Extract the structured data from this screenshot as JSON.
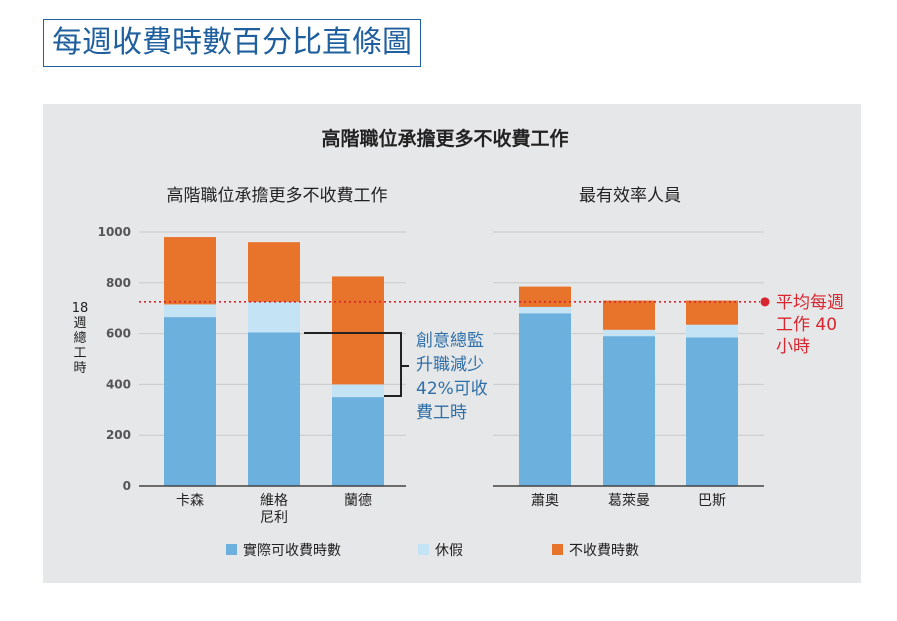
{
  "page": {
    "title": "每週收費時數百分比直條圖"
  },
  "colors": {
    "actual": "#6cb0dd",
    "vacation": "#c4e3f5",
    "unbilled": "#e8732b",
    "panel_bg": "#e6e7e8",
    "title_blue": "#1f5f9e",
    "avg_line": "#d7262f",
    "annotation_blue": "#2f6fa8"
  },
  "chart_data": {
    "type": "bar",
    "stacked": true,
    "title": "高階職位承擔更多不收費工作",
    "ylabel": "18\n週\n總\n工\n時",
    "ylim": [
      0,
      1000
    ],
    "yticks": [
      0,
      200,
      400,
      600,
      800,
      1000
    ],
    "grid": true,
    "legend_position": "bottom",
    "reference_line": {
      "value": 725,
      "label": "平均每週\n工作 40\n小時"
    },
    "annotation": {
      "text": "創意總監\n升職減少\n42%可收\n費工時"
    },
    "legend": [
      "實際可收費時數",
      "休假",
      "不收費時數"
    ],
    "panels": [
      {
        "subtitle": "高階職位承擔更多不收費工作",
        "categories": [
          "卡森",
          "維格\n尼利",
          "蘭德"
        ],
        "series": [
          {
            "name": "實際可收費時數",
            "values": [
              665,
              605,
              350
            ]
          },
          {
            "name": "休假",
            "values": [
              50,
              120,
              50
            ]
          },
          {
            "name": "不收費時數",
            "values": [
              265,
              235,
              425
            ]
          }
        ]
      },
      {
        "subtitle": "最有效率人員",
        "categories": [
          "蕭奧",
          "葛萊曼",
          "巴斯"
        ],
        "series": [
          {
            "name": "實際可收費時數",
            "values": [
              680,
              590,
              585
            ]
          },
          {
            "name": "休假",
            "values": [
              25,
              25,
              50
            ]
          },
          {
            "name": "不收費時數",
            "values": [
              80,
              115,
              95
            ]
          }
        ]
      }
    ]
  }
}
